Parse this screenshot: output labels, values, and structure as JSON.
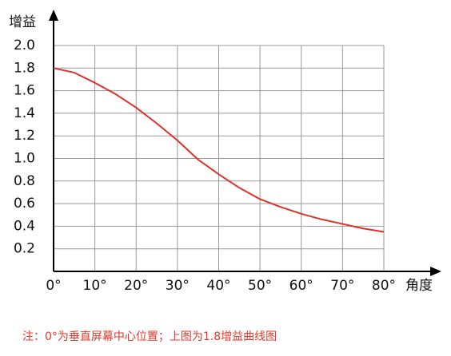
{
  "chart_data": {
    "type": "line",
    "y_label": "增益",
    "x_label": "角度",
    "note": "注：0°为垂直屏幕中心位置；上图为1.8增益曲线图",
    "x": [
      0,
      5,
      10,
      15,
      20,
      25,
      30,
      35,
      40,
      45,
      50,
      55,
      60,
      65,
      70,
      75,
      80
    ],
    "series": [
      {
        "color": "#e0302a",
        "values": [
          1.8,
          1.76,
          1.67,
          1.57,
          1.45,
          1.31,
          1.16,
          0.99,
          0.86,
          0.74,
          0.64,
          0.57,
          0.51,
          0.46,
          0.42,
          0.38,
          0.35
        ]
      }
    ],
    "xlim": [
      0,
      80
    ],
    "xticks": [
      {
        "value": 0,
        "label": "0°"
      },
      {
        "value": 10,
        "label": "10°"
      },
      {
        "value": 20,
        "label": "20°"
      },
      {
        "value": 30,
        "label": "30°"
      },
      {
        "value": 40,
        "label": "40°"
      },
      {
        "value": 50,
        "label": "50°"
      },
      {
        "value": 60,
        "label": "60°"
      },
      {
        "value": 70,
        "label": "70°"
      },
      {
        "value": 80,
        "label": "80°"
      }
    ],
    "ylim": [
      0,
      2.0
    ],
    "yticks": [
      0.2,
      0.4,
      0.6,
      0.8,
      {
        "value": 1.0,
        "label": "1.0"
      },
      1.2,
      1.4,
      1.6,
      1.8,
      {
        "value": 2.0,
        "label": "2.0"
      }
    ],
    "grid": true
  }
}
